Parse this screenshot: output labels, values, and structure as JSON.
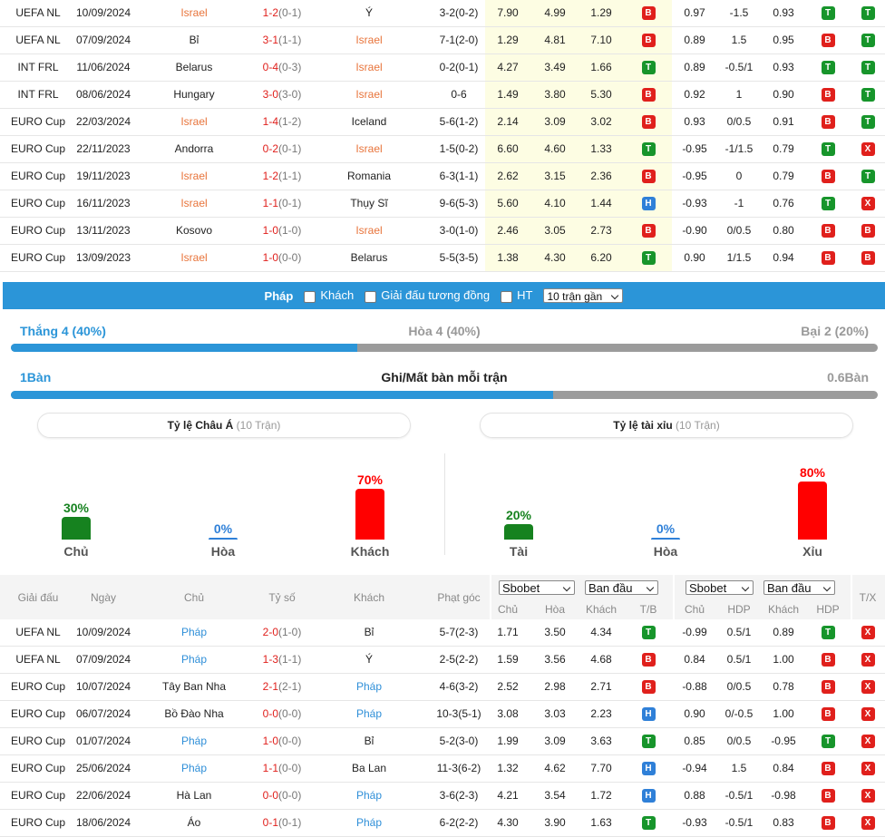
{
  "badge_colors": {
    "B": "#e0201c",
    "T": "#17952b",
    "H": "#2f80d8",
    "X": "#e0201c"
  },
  "top_table": {
    "highlight": "Israel",
    "highlight_color": "#e8743b",
    "rows": [
      [
        "UEFA NL",
        "10/09/2024",
        "Israel",
        "1-2",
        "(0-1)",
        "Ý",
        "3-2(0-2)",
        "7.90",
        "4.99",
        "1.29",
        "B",
        "0.97",
        "-1.5",
        "0.93",
        "T",
        "T"
      ],
      [
        "UEFA NL",
        "07/09/2024",
        "Bỉ",
        "3-1",
        "(1-1)",
        "Israel",
        "7-1(2-0)",
        "1.29",
        "4.81",
        "7.10",
        "B",
        "0.89",
        "1.5",
        "0.95",
        "B",
        "T"
      ],
      [
        "INT FRL",
        "11/06/2024",
        "Belarus",
        "0-4",
        "(0-3)",
        "Israel",
        "0-2(0-1)",
        "4.27",
        "3.49",
        "1.66",
        "T",
        "0.89",
        "-0.5/1",
        "0.93",
        "T",
        "T"
      ],
      [
        "INT FRL",
        "08/06/2024",
        "Hungary",
        "3-0",
        "(3-0)",
        "Israel",
        "0-6",
        "1.49",
        "3.80",
        "5.30",
        "B",
        "0.92",
        "1",
        "0.90",
        "B",
        "T"
      ],
      [
        "EURO Cup",
        "22/03/2024",
        "Israel",
        "1-4",
        "(1-2)",
        "Iceland",
        "5-6(1-2)",
        "2.14",
        "3.09",
        "3.02",
        "B",
        "0.93",
        "0/0.5",
        "0.91",
        "B",
        "T"
      ],
      [
        "EURO Cup",
        "22/11/2023",
        "Andorra",
        "0-2",
        "(0-1)",
        "Israel",
        "1-5(0-2)",
        "6.60",
        "4.60",
        "1.33",
        "T",
        "-0.95",
        "-1/1.5",
        "0.79",
        "T",
        "X"
      ],
      [
        "EURO Cup",
        "19/11/2023",
        "Israel",
        "1-2",
        "(1-1)",
        "Romania",
        "6-3(1-1)",
        "2.62",
        "3.15",
        "2.36",
        "B",
        "-0.95",
        "0",
        "0.79",
        "B",
        "T"
      ],
      [
        "EURO Cup",
        "16/11/2023",
        "Israel",
        "1-1",
        "(0-1)",
        "Thụy Sĩ",
        "9-6(5-3)",
        "5.60",
        "4.10",
        "1.44",
        "H",
        "-0.93",
        "-1",
        "0.76",
        "T",
        "X"
      ],
      [
        "EURO Cup",
        "13/11/2023",
        "Kosovo",
        "1-0",
        "(1-0)",
        "Israel",
        "3-0(1-0)",
        "2.46",
        "3.05",
        "2.73",
        "B",
        "-0.90",
        "0/0.5",
        "0.80",
        "B",
        "B"
      ],
      [
        "EURO Cup",
        "13/09/2023",
        "Israel",
        "1-0",
        "(0-0)",
        "Belarus",
        "5-5(3-5)",
        "1.38",
        "4.30",
        "6.20",
        "T",
        "0.90",
        "1/1.5",
        "0.94",
        "B",
        "B"
      ]
    ]
  },
  "filter": {
    "team": "Pháp",
    "options": [
      "Khách",
      "Giải đấu tương đồng",
      "HT"
    ],
    "select": "10 trận gần"
  },
  "results": {
    "win": "Thắng 4 (40%)",
    "draw": "Hòa 4 (40%)",
    "loss": "Bại 2 (20%)",
    "win_share": 40
  },
  "goals": {
    "scored": 1,
    "conceded": 0.6,
    "unit": "Bàn",
    "title": "Ghi/Mất bàn mỗi trận"
  },
  "panels": [
    {
      "title": "Tỷ lệ Châu Á",
      "note": "(10 Trận)",
      "categories": [
        "Chủ",
        "Hòa",
        "Khách"
      ],
      "values": [
        30,
        0,
        70
      ],
      "value_labels": [
        "30%",
        "0%",
        "70%"
      ],
      "colors": [
        "#16821f",
        "#2f80d8",
        "#ff0000"
      ]
    },
    {
      "title": "Tỷ lệ tài xỉu",
      "note": "(10 Trận)",
      "categories": [
        "Tài",
        "Hòa",
        "Xỉu"
      ],
      "values": [
        20,
        0,
        80
      ],
      "value_labels": [
        "20%",
        "0%",
        "80%"
      ],
      "colors": [
        "#16821f",
        "#2f80d8",
        "#ff0000"
      ]
    }
  ],
  "bottom_table": {
    "highlight": "Pháp",
    "highlight_color": "#2f8fd8",
    "headers": [
      "Giải đấu",
      "Ngày",
      "Chủ",
      "Tỷ số",
      "Khách",
      "Phạt góc"
    ],
    "selects": [
      "Sbobet",
      "Ban đầu",
      "Sbobet",
      "Ban đầu"
    ],
    "subheaders": [
      "Chủ",
      "Hòa",
      "Khách",
      "T/B",
      "Chủ",
      "HDP",
      "Khách",
      "HDP"
    ],
    "last_header": "T/X",
    "rows": [
      [
        "UEFA NL",
        "10/09/2024",
        "Pháp",
        "2-0",
        "(1-0)",
        "Bỉ",
        "5-7(2-3)",
        "1.71",
        "3.50",
        "4.34",
        "T",
        "-0.99",
        "0.5/1",
        "0.89",
        "T",
        "X"
      ],
      [
        "UEFA NL",
        "07/09/2024",
        "Pháp",
        "1-3",
        "(1-1)",
        "Ý",
        "2-5(2-2)",
        "1.59",
        "3.56",
        "4.68",
        "B",
        "0.84",
        "0.5/1",
        "1.00",
        "B",
        "X"
      ],
      [
        "EURO Cup",
        "10/07/2024",
        "Tây Ban Nha",
        "2-1",
        "(2-1)",
        "Pháp",
        "4-6(3-2)",
        "2.52",
        "2.98",
        "2.71",
        "B",
        "-0.88",
        "0/0.5",
        "0.78",
        "B",
        "X"
      ],
      [
        "EURO Cup",
        "06/07/2024",
        "Bồ Đào Nha",
        "0-0",
        "(0-0)",
        "Pháp",
        "10-3(5-1)",
        "3.08",
        "3.03",
        "2.23",
        "H",
        "0.90",
        "0/-0.5",
        "1.00",
        "B",
        "X"
      ],
      [
        "EURO Cup",
        "01/07/2024",
        "Pháp",
        "1-0",
        "(0-0)",
        "Bỉ",
        "5-2(3-0)",
        "1.99",
        "3.09",
        "3.63",
        "T",
        "0.85",
        "0/0.5",
        "-0.95",
        "T",
        "X"
      ],
      [
        "EURO Cup",
        "25/06/2024",
        "Pháp",
        "1-1",
        "(0-0)",
        "Ba Lan",
        "11-3(6-2)",
        "1.32",
        "4.62",
        "7.70",
        "H",
        "-0.94",
        "1.5",
        "0.84",
        "B",
        "X"
      ],
      [
        "EURO Cup",
        "22/06/2024",
        "Hà Lan",
        "0-0",
        "(0-0)",
        "Pháp",
        "3-6(2-3)",
        "4.21",
        "3.54",
        "1.72",
        "H",
        "0.88",
        "-0.5/1",
        "-0.98",
        "B",
        "X"
      ],
      [
        "EURO Cup",
        "18/06/2024",
        "Áo",
        "0-1",
        "(0-1)",
        "Pháp",
        "6-2(2-2)",
        "4.30",
        "3.90",
        "1.63",
        "T",
        "-0.93",
        "-0.5/1",
        "0.83",
        "B",
        "X"
      ]
    ]
  }
}
